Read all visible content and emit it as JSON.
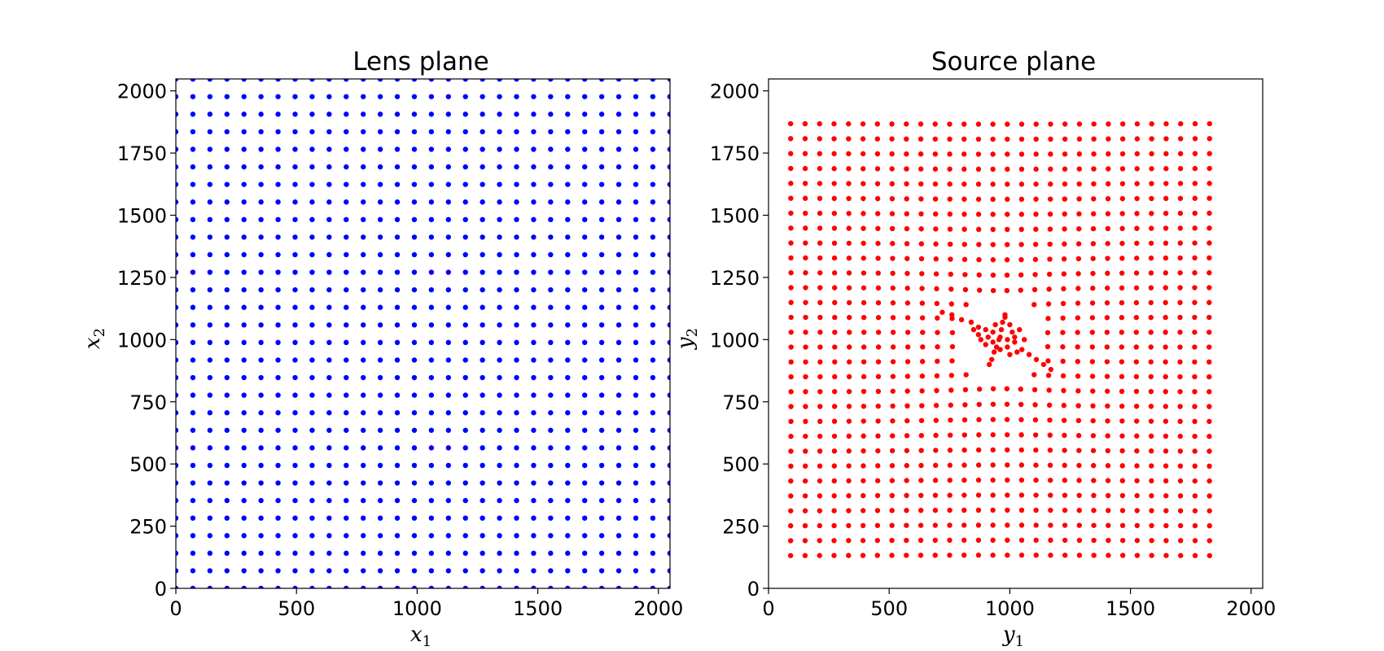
{
  "chart_data": [
    {
      "type": "scatter",
      "title": "Lens plane",
      "xlabel": {
        "base": "x",
        "sub": "1"
      },
      "ylabel": {
        "base": "x",
        "sub": "2"
      },
      "xlim": [
        0,
        2048
      ],
      "ylim": [
        0,
        2048
      ],
      "xticks": [
        0,
        500,
        1000,
        1500,
        2000
      ],
      "yticks": [
        0,
        250,
        500,
        750,
        1000,
        1250,
        1500,
        1750,
        2000
      ],
      "grid": false,
      "marker_color": "#0000ff",
      "points": {
        "kind": "regular-grid",
        "x_start": 0,
        "x_step": 70.6,
        "x_count": 30,
        "y_start": 0,
        "y_step": 70.6,
        "y_count": 30
      }
    },
    {
      "type": "scatter",
      "title": "Source plane",
      "xlabel": {
        "base": "y",
        "sub": "1"
      },
      "ylabel": {
        "base": "y",
        "sub": "2"
      },
      "xlim": [
        0,
        2048
      ],
      "ylim": [
        0,
        2048
      ],
      "xticks": [
        0,
        500,
        1000,
        1500,
        2000
      ],
      "yticks": [
        0,
        250,
        500,
        750,
        1000,
        1250,
        1500,
        1750,
        2000
      ],
      "grid": false,
      "marker_color": "#ff0000",
      "points": {
        "kind": "lensed-grid",
        "grid_start": 0,
        "grid_step": 70.6,
        "grid_count": 30,
        "center": [
          960,
          1000
        ],
        "scale": 0.85,
        "deflection_strength": 12000,
        "core": 80,
        "skip_radius": 240,
        "inner_cluster": {
          "points": [
            [
              720,
              1110
            ],
            [
              760,
              1100
            ],
            [
              800,
              1080
            ],
            [
              840,
              1070
            ],
            [
              870,
              1050
            ],
            [
              900,
              1040
            ],
            [
              930,
              1030
            ],
            [
              960,
              1010
            ],
            [
              990,
              1000
            ],
            [
              1020,
              990
            ],
            [
              1050,
              960
            ],
            [
              1080,
              940
            ],
            [
              1110,
              920
            ],
            [
              1140,
              900
            ],
            [
              1170,
              880
            ],
            [
              980,
              1100
            ],
            [
              970,
              1070
            ],
            [
              965,
              1040
            ],
            [
              955,
              1000
            ],
            [
              945,
              970
            ],
            [
              935,
              950
            ],
            [
              925,
              920
            ],
            [
              915,
              900
            ],
            [
              880,
              1000
            ],
            [
              900,
              980
            ],
            [
              1000,
              1060
            ],
            [
              1010,
              1030
            ],
            [
              1020,
              1010
            ],
            [
              940,
              1060
            ],
            [
              910,
              1010
            ],
            [
              960,
              960
            ],
            [
              990,
              970
            ],
            [
              1030,
              950
            ],
            [
              870,
              1020
            ],
            [
              850,
              1040
            ],
            [
              1000,
              940
            ],
            [
              980,
              1090
            ],
            [
              930,
              990
            ],
            [
              1060,
              1000
            ],
            [
              1040,
              1040
            ]
          ]
        }
      }
    }
  ]
}
